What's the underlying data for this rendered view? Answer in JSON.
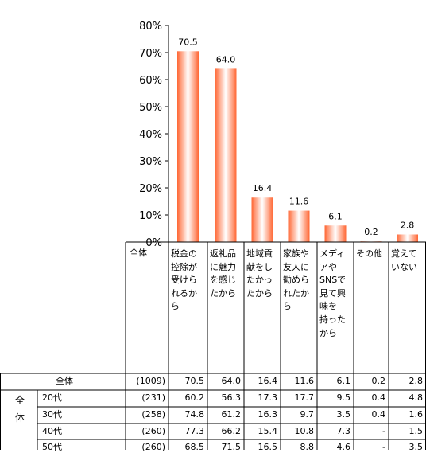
{
  "chart_data": {
    "type": "bar",
    "categories": [
      "税金の\n控除が\n受けら\nれるか\nら",
      "返礼品\nに魅力\nを感じ\nたから",
      "地域貢\n献をし\nたかっ\nたから",
      "家族や\n友人に\n勧めら\nれたか\nら",
      "メディ\nアや\nSNSで\n見て興\n味を\n持った\nから",
      "その他",
      "覚えて\nいない"
    ],
    "values": [
      70.5,
      64.0,
      16.4,
      11.6,
      6.1,
      0.2,
      2.8
    ],
    "value_labels": [
      "70.5",
      "64.0",
      "16.4",
      "11.6",
      "6.1",
      "0.2",
      "2.8"
    ],
    "yticks": [
      "0%",
      "10%",
      "20%",
      "30%",
      "40%",
      "50%",
      "60%",
      "70%",
      "80%"
    ],
    "ylim": [
      0,
      80
    ],
    "grid": false,
    "bar_color": "#ff6633"
  },
  "table": {
    "header_label": "全体",
    "group_label": "全\n体",
    "rows": [
      {
        "label": "全体",
        "n": "(1009)",
        "values": [
          "70.5",
          "64.0",
          "16.4",
          "11.6",
          "6.1",
          "0.2",
          "2.8"
        ]
      },
      {
        "label": "20代",
        "n": "(231)",
        "values": [
          "60.2",
          "56.3",
          "17.3",
          "17.7",
          "9.5",
          "0.4",
          "4.8"
        ]
      },
      {
        "label": "30代",
        "n": "(258)",
        "values": [
          "74.8",
          "61.2",
          "16.3",
          "9.7",
          "3.5",
          "0.4",
          "1.6"
        ]
      },
      {
        "label": "40代",
        "n": "(260)",
        "values": [
          "77.3",
          "66.2",
          "15.4",
          "10.8",
          "7.3",
          "-",
          "1.5"
        ]
      },
      {
        "label": "50代",
        "n": "(260)",
        "values": [
          "68.5",
          "71.5",
          "16.5",
          "8.8",
          "4.6",
          "-",
          "3.5"
        ]
      }
    ]
  }
}
